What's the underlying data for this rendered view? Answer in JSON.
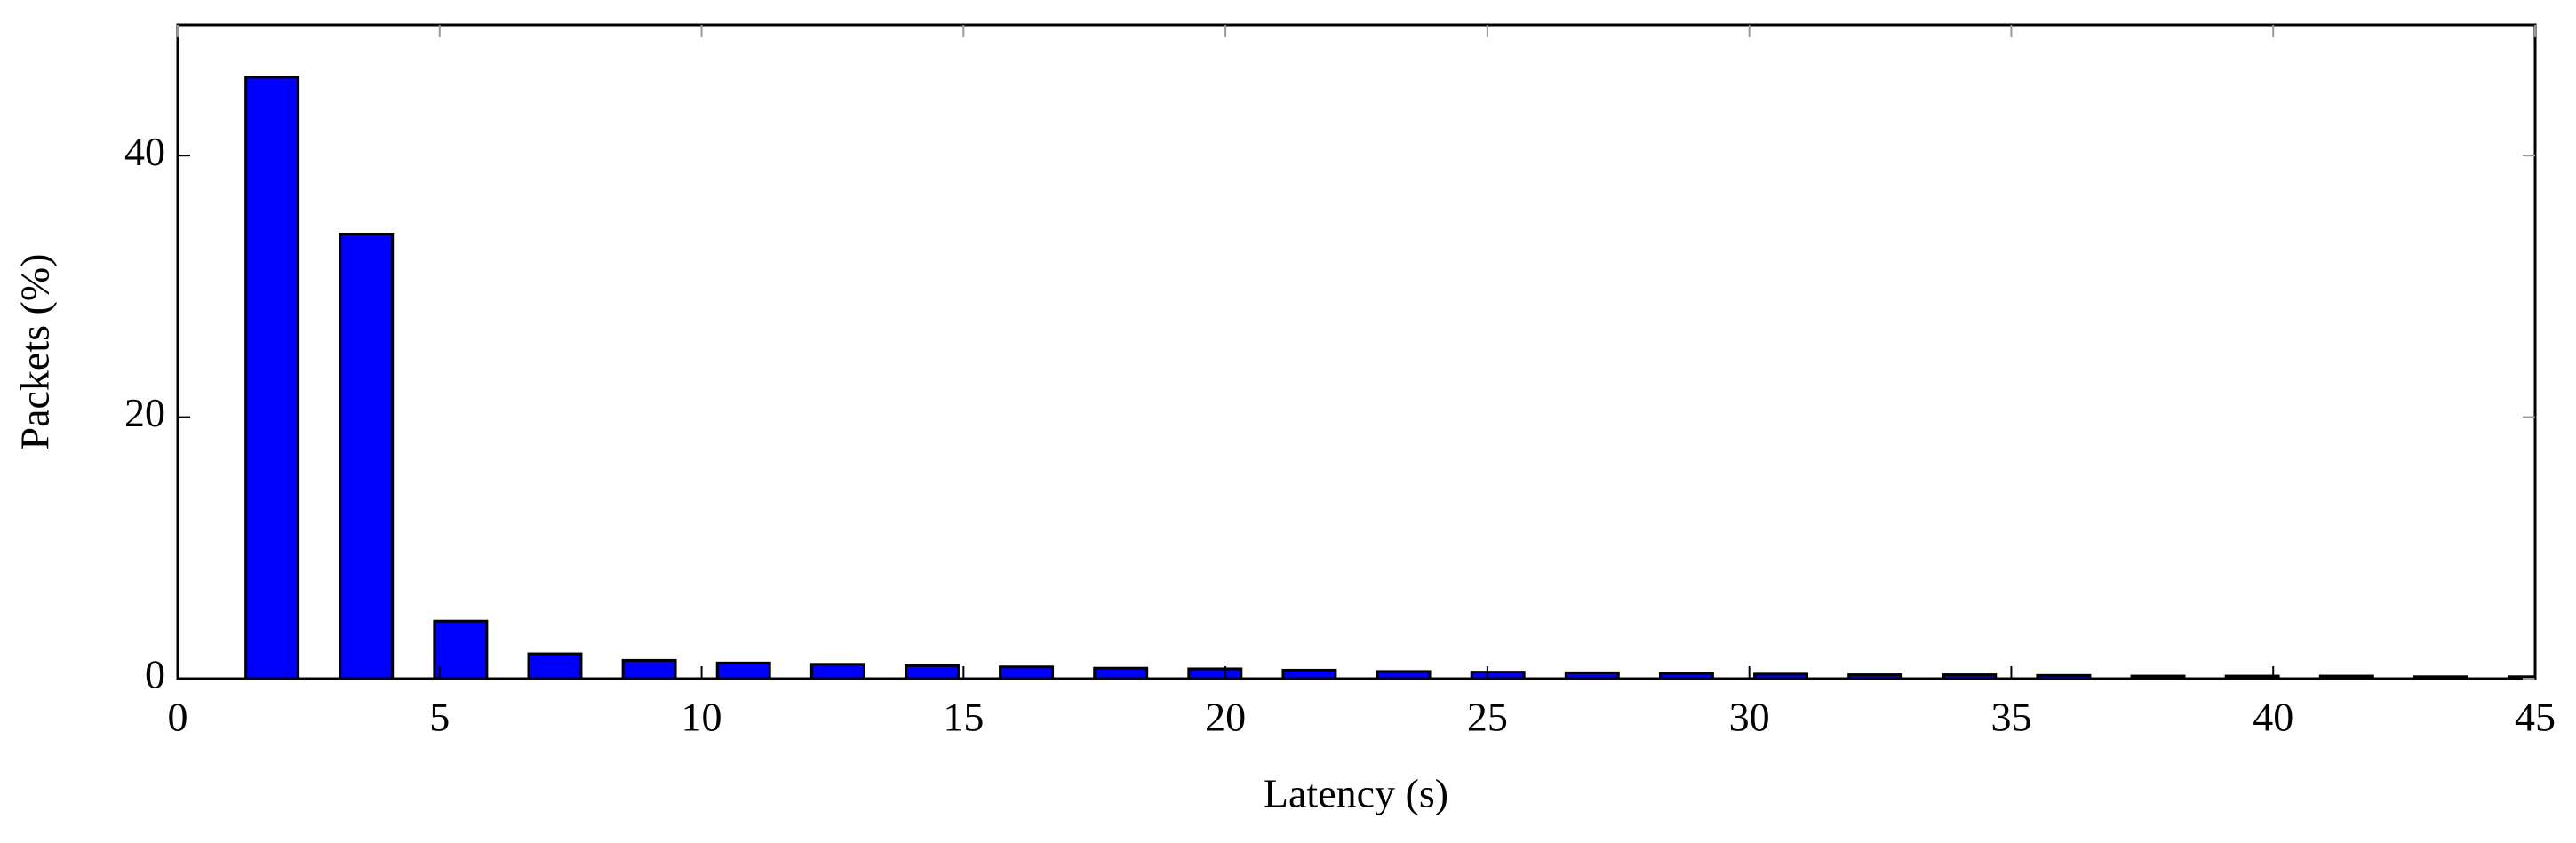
{
  "chart_data": {
    "type": "bar",
    "xlabel": "Latency (s)",
    "ylabel": "Packets (%)",
    "x": [
      1.8,
      3.6,
      5.4,
      7.2,
      9,
      10.8,
      12.6,
      14.4,
      16.2,
      18,
      19.8,
      21.6,
      23.4,
      25.2,
      27,
      28.8,
      30.6,
      32.4,
      34.2,
      36,
      37.8,
      39.6,
      41.4,
      43.2,
      45
    ],
    "values": [
      46,
      34,
      4.4,
      1.9,
      1.4,
      1.2,
      1.1,
      1.0,
      0.9,
      0.8,
      0.75,
      0.65,
      0.55,
      0.5,
      0.45,
      0.4,
      0.35,
      0.3,
      0.3,
      0.25,
      0.2,
      0.2,
      0.2,
      0.15,
      0.15
    ],
    "color": "#0000ff",
    "xlim": [
      0,
      45
    ],
    "xticks": [
      0,
      5,
      10,
      15,
      20,
      25,
      30,
      35,
      40,
      45
    ],
    "ylim": [
      0,
      50
    ],
    "yticks": [
      0,
      20,
      40
    ]
  }
}
